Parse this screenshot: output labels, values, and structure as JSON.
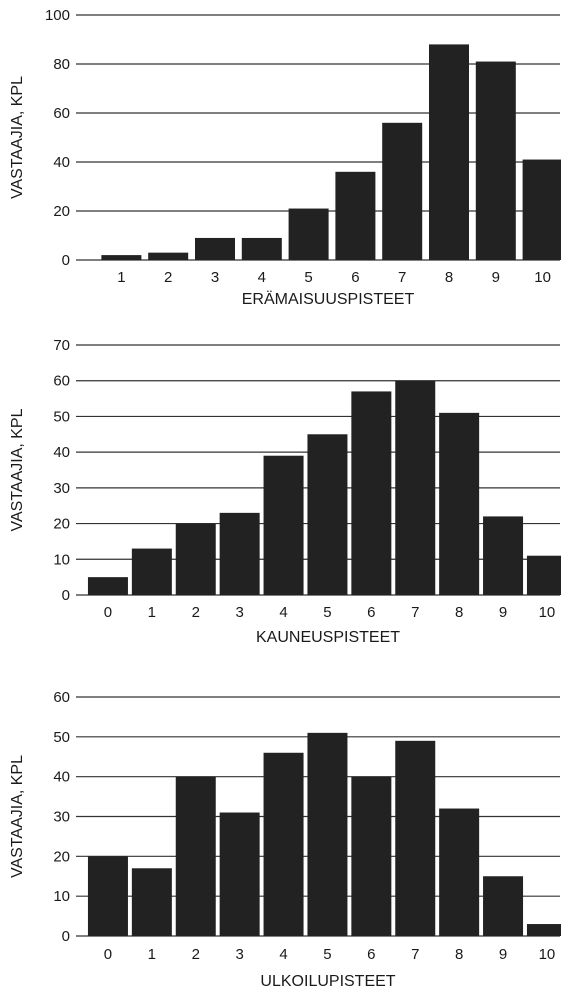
{
  "chart_data": [
    {
      "type": "bar",
      "categories": [
        "1",
        "2",
        "3",
        "4",
        "5",
        "6",
        "7",
        "8",
        "9",
        "10"
      ],
      "values": [
        2,
        3,
        9,
        9,
        21,
        36,
        56,
        88,
        81,
        41
      ],
      "xlabel": "ERÄMAISUUSPISTEET",
      "ylabel": "VASTAAJIA, KPL",
      "ylim": [
        0,
        100
      ],
      "yticks": [
        0,
        20,
        40,
        60,
        80,
        100
      ],
      "grid": true,
      "colors": {
        "bar": "#222222"
      }
    },
    {
      "type": "bar",
      "categories": [
        "0",
        "1",
        "2",
        "3",
        "4",
        "5",
        "6",
        "7",
        "8",
        "9",
        "10"
      ],
      "values": [
        5,
        13,
        20,
        23,
        39,
        45,
        57,
        60,
        51,
        22,
        11
      ],
      "xlabel": "KAUNEUSPISTEET",
      "ylabel": "VASTAAJIA, KPL",
      "ylim": [
        0,
        70
      ],
      "yticks": [
        0,
        10,
        20,
        30,
        40,
        50,
        60,
        70
      ],
      "grid": true,
      "colors": {
        "bar": "#222222"
      }
    },
    {
      "type": "bar",
      "categories": [
        "0",
        "1",
        "2",
        "3",
        "4",
        "5",
        "6",
        "7",
        "8",
        "9",
        "10"
      ],
      "values": [
        20,
        17,
        40,
        31,
        46,
        51,
        40,
        49,
        32,
        15,
        3
      ],
      "xlabel": "ULKOILUPISTEET",
      "ylabel": "VASTAAJIA, KPL",
      "ylim": [
        0,
        60
      ],
      "yticks": [
        0,
        10,
        20,
        30,
        40,
        50,
        60
      ],
      "grid": true,
      "colors": {
        "bar": "#222222"
      }
    }
  ]
}
